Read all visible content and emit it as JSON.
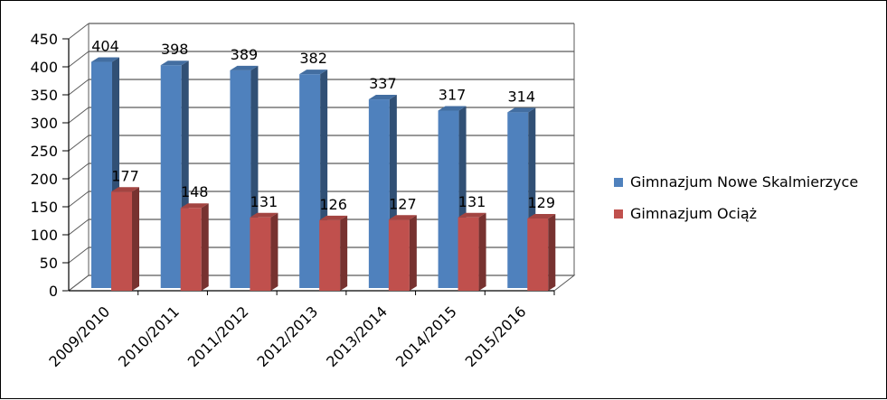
{
  "chart_data": {
    "type": "bar",
    "categories": [
      "2009/2010",
      "2010/2011",
      "2011/2012",
      "2012/2013",
      "2013/2014",
      "2014/2015",
      "2015/2016"
    ],
    "series": [
      {
        "name": "Gimnazjum Nowe Skalmierzyce",
        "values": [
          404,
          398,
          389,
          382,
          337,
          317,
          314
        ],
        "color": "#4F81BD"
      },
      {
        "name": "Gimnazjum Ociąż",
        "values": [
          177,
          148,
          131,
          126,
          127,
          131,
          129
        ],
        "color": "#C0504D"
      }
    ],
    "y_ticks": [
      "0",
      "50",
      "100",
      "150",
      "200",
      "250",
      "300",
      "350",
      "400",
      "450"
    ],
    "ylim": [
      0,
      450
    ],
    "grid": true,
    "legend": "right",
    "style": "3d-clustered-column"
  }
}
